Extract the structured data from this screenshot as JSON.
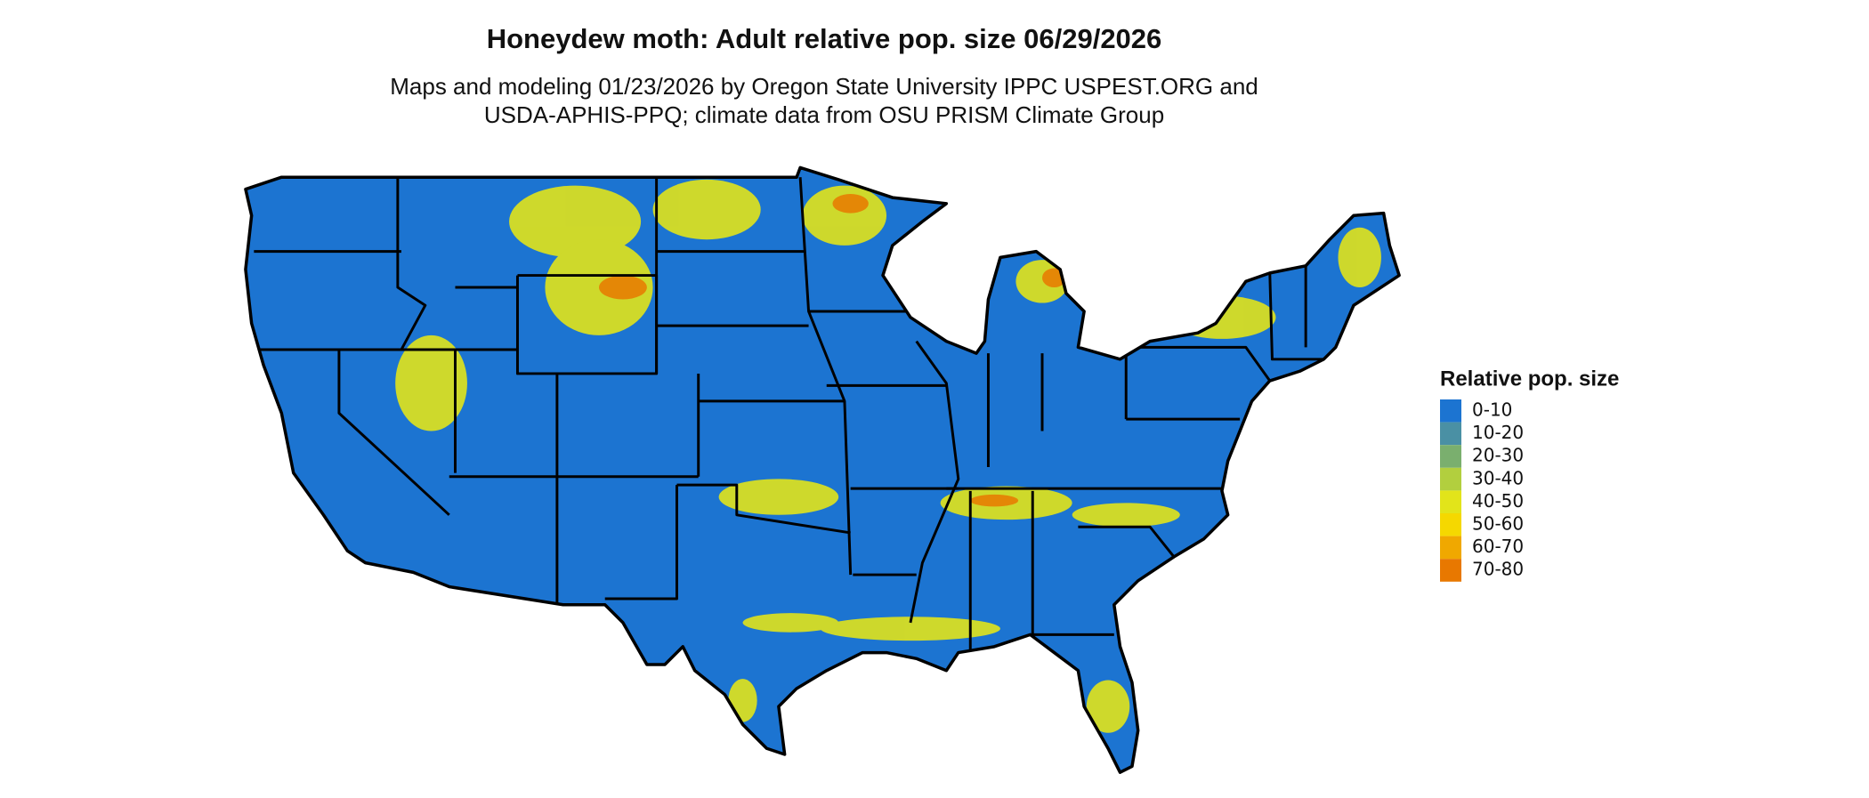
{
  "header": {
    "title": "Honeydew moth: Adult relative pop. size 06/29/2026",
    "subtitle": [
      "Maps and modeling 01/23/2026 by Oregon State University IPPC USPEST.ORG and",
      "USDA-APHIS-PPQ; climate data from OSU PRISM Climate Group"
    ]
  },
  "legend": {
    "title": "Relative pop. size",
    "items": [
      {
        "label": "0-10",
        "color": "#1c74d1"
      },
      {
        "label": "10-20",
        "color": "#4a90a4"
      },
      {
        "label": "20-30",
        "color": "#7aaf6e"
      },
      {
        "label": "30-40",
        "color": "#b2cf3e"
      },
      {
        "label": "40-50",
        "color": "#e2e41a"
      },
      {
        "label": "50-60",
        "color": "#f5d800"
      },
      {
        "label": "60-70",
        "color": "#f0a800"
      },
      {
        "label": "70-80",
        "color": "#e87800"
      }
    ]
  }
}
